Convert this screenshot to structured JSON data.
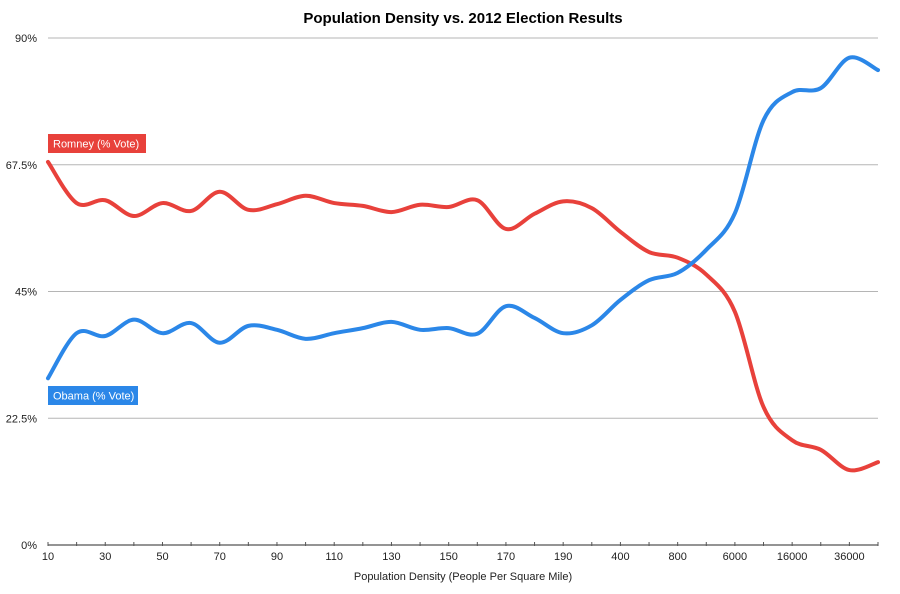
{
  "chart_data": {
    "type": "line",
    "title": "Population Density vs. 2012 Election Results",
    "xlabel": "Population Density (People Per Square Mile)",
    "ylabel": "",
    "ylim": [
      0,
      90
    ],
    "yticks": [
      "0%",
      "22.5%",
      "45%",
      "67.5%",
      "90%"
    ],
    "ytick_values": [
      0,
      22.5,
      45,
      67.5,
      90
    ],
    "grid": true,
    "x_tick_labels": [
      "10",
      "",
      "30",
      "",
      "50",
      "",
      "70",
      "",
      "90",
      "",
      "110",
      "",
      "130",
      "",
      "150",
      "",
      "170",
      "",
      "190",
      "",
      "400",
      "",
      "800",
      "",
      "6000",
      "",
      "16000",
      "",
      "36000",
      ""
    ],
    "series": [
      {
        "name": "Romney (% Vote)",
        "color": "#e8413b",
        "values": [
          68,
          60.7,
          61.2,
          58.4,
          60.7,
          59.3,
          62.7,
          59.5,
          60.5,
          62,
          60.7,
          60.2,
          59.1,
          60.4,
          60,
          61.2,
          56.1,
          58.8,
          61,
          59.8,
          55.6,
          52,
          51,
          48,
          41.4,
          24.5,
          18.6,
          16.9,
          13.3,
          14.7
        ]
      },
      {
        "name": "Obama (% Vote)",
        "color": "#2b87e8",
        "values": [
          29.6,
          37.6,
          37.1,
          40,
          37.6,
          39.4,
          35.9,
          38.9,
          38.2,
          36.6,
          37.6,
          38.5,
          39.6,
          38.2,
          38.5,
          37.5,
          42.4,
          40.3,
          37.6,
          39,
          43.5,
          47,
          48.3,
          52.4,
          58.9,
          75.4,
          80.4,
          81.1,
          86.5,
          84.3
        ]
      }
    ]
  }
}
